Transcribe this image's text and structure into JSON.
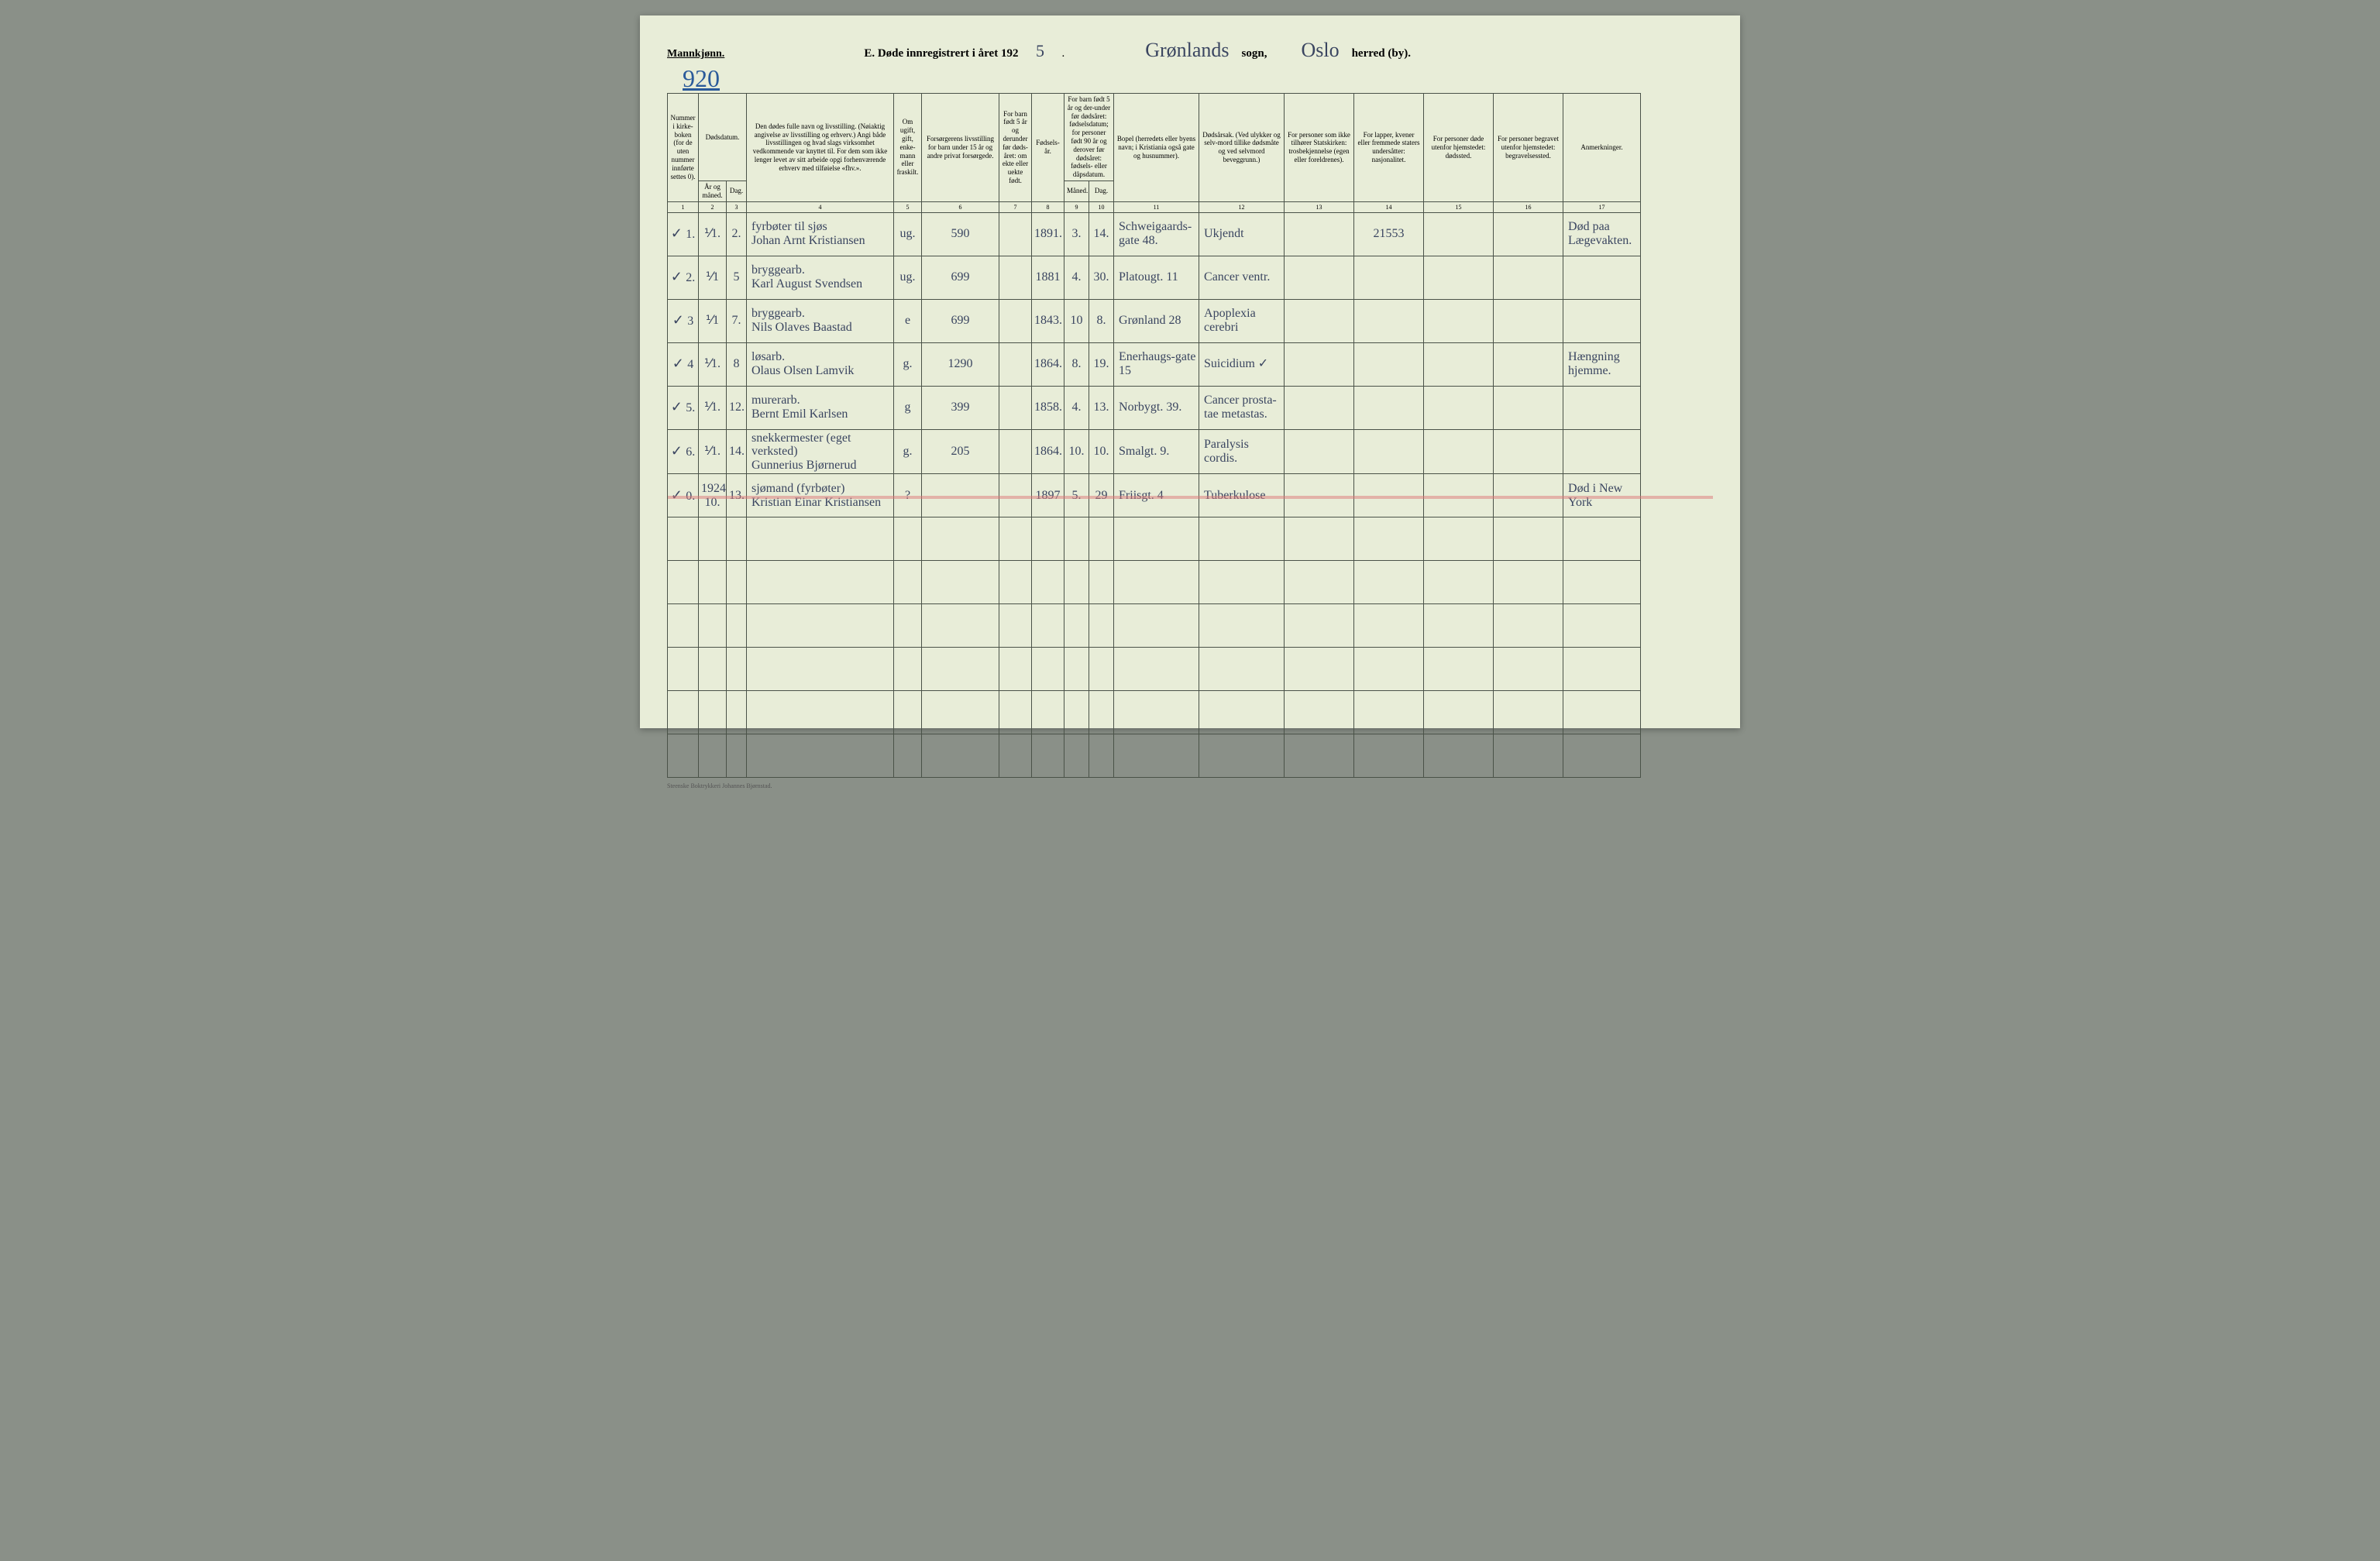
{
  "header": {
    "gender": "Mannkjønn.",
    "title_prefix": "E.  Døde innregistrert i året 192",
    "year_suffix": "5",
    "period": ".",
    "parish": "Grønlands",
    "parish_label": "sogn,",
    "district": "Oslo",
    "district_label": "herred (by).",
    "page_number": "920"
  },
  "columns": {
    "c1": "Nummer i kirke-boken (for de uten nummer innførte settes 0).",
    "c2_top": "Dødsdatum.",
    "c2a": "År og måned.",
    "c2b": "Dag.",
    "c3": "Den dødes fulle navn og livsstilling. (Nøiaktig angivelse av livsstilling og erhverv.) Angi både livsstillingen og hvad slags virksomhet vedkommende var knyttet til. For dem som ikke lenger levet av sitt arbeide opgi forhenværende erhverv med tilføielse «fhv.».",
    "c4": "Om ugift, gift, enke-mann eller fraskilt.",
    "c5": "Forsørgerens livsstilling for barn under 15 år og andre privat forsørgede.",
    "c6": "For barn født 5 år og derunder før døds-året: om ekte eller uekte født.",
    "c7": "Fødsels-år.",
    "c8_top": "For barn født 5 år og der-under før dødsåret: fødselsdatum; for personer født 90 år og derover før dødsåret: fødsels- eller dåpsdatum.",
    "c8a": "Måned.",
    "c8b": "Dag.",
    "c9": "Bopel (herredets eller byens navn; i Kristiania også gate og husnummer).",
    "c10": "Dødsårsak. (Ved ulykker og selv-mord tillike dødsmåte og ved selvmord beveggrunn.)",
    "c11": "For personer som ikke tilhører Statskirken: trosbekjennelse (egen eller foreldrenes).",
    "c12": "For lapper, kvener eller fremmede staters undersåtter: nasjonalitet.",
    "c13": "For personer døde utenfor hjemstedet: dødssted.",
    "c14": "For personer begravet utenfor hjemstedet: begravelsessted.",
    "c15": "Anmerkninger."
  },
  "colnums": [
    "1",
    "2",
    "3",
    "4",
    "5",
    "6",
    "7",
    "8",
    "9",
    "10",
    "11",
    "12",
    "13",
    "14",
    "15",
    "16",
    "17"
  ],
  "rows": [
    {
      "tick": "✓",
      "num": "1.",
      "month": "⅟1.",
      "day": "2.",
      "name": "fyrbøter til sjøs\nJohan Arnt Kristiansen",
      "status": "ug.",
      "provider": "590",
      "legit": "",
      "birth_year": "1891.",
      "b_month": "3.",
      "b_day": "14.",
      "residence": "Schweigaards-gate 48.",
      "cause": "Ukjendt",
      "faith": "",
      "nationality": "21553",
      "death_place": "",
      "burial_place": "",
      "remarks": "Død paa Lægevakten."
    },
    {
      "tick": "✓",
      "num": "2.",
      "month": "⅟1",
      "day": "5",
      "name": "bryggearb.\nKarl August Svendsen",
      "status": "ug.",
      "provider": "699",
      "legit": "",
      "birth_year": "1881",
      "b_month": "4.",
      "b_day": "30.",
      "residence": "Platougt. 11",
      "cause": "Cancer ventr.",
      "faith": "",
      "nationality": "",
      "death_place": "",
      "burial_place": "",
      "remarks": ""
    },
    {
      "tick": "✓",
      "num": "3",
      "month": "⅟1",
      "day": "7.",
      "name": "bryggearb.\nNils Olaves Baastad",
      "status": "e",
      "provider": "699",
      "legit": "",
      "birth_year": "1843.",
      "b_month": "10",
      "b_day": "8.",
      "residence": "Grønland 28",
      "cause": "Apoplexia cerebri",
      "faith": "",
      "nationality": "",
      "death_place": "",
      "burial_place": "",
      "remarks": ""
    },
    {
      "tick": "✓",
      "num": "4",
      "month": "⅟1.",
      "day": "8",
      "name": "løsarb.\nOlaus Olsen Lamvik",
      "status": "g.",
      "provider": "1290",
      "legit": "",
      "birth_year": "1864.",
      "b_month": "8.",
      "b_day": "19.",
      "residence": "Enerhaugs-gate 15",
      "cause": "Suicidium ✓",
      "faith": "",
      "nationality": "",
      "death_place": "",
      "burial_place": "",
      "remarks": "Hængning hjemme."
    },
    {
      "tick": "✓",
      "num": "5.",
      "month": "⅟1.",
      "day": "12.",
      "name": "murerarb.\nBernt Emil Karlsen",
      "status": "g",
      "provider": "399",
      "legit": "",
      "birth_year": "1858.",
      "b_month": "4.",
      "b_day": "13.",
      "residence": "Norbygt. 39.",
      "cause": "Cancer prosta-tae metastas.",
      "faith": "",
      "nationality": "",
      "death_place": "",
      "burial_place": "",
      "remarks": ""
    },
    {
      "tick": "✓",
      "num": "6.",
      "month": "⅟1.",
      "day": "14.",
      "name": "snekkermester (eget verksted)\nGunnerius Bjørnerud",
      "status": "g.",
      "provider": "205",
      "legit": "",
      "birth_year": "1864.",
      "b_month": "10.",
      "b_day": "10.",
      "residence": "Smalgt. 9.",
      "cause": "Paralysis cordis.",
      "faith": "",
      "nationality": "",
      "death_place": "",
      "burial_place": "",
      "remarks": ""
    },
    {
      "tick": "✓",
      "num": "0.",
      "month": "1924\n10.",
      "day": "13.",
      "name": "sjømand (fyrbøter)\nKristian Einar Kristiansen",
      "status": "?",
      "provider": "",
      "legit": "",
      "birth_year": "1897",
      "b_month": "5.",
      "b_day": "29",
      "residence": "Friisgt. 4",
      "cause": "Tuberkulose",
      "faith": "",
      "nationality": "",
      "death_place": "",
      "burial_place": "",
      "remarks": "Død i New York",
      "struck": true
    }
  ],
  "empty_rows": 6,
  "footer": "Steenske Boktrykkeri Johannes Bjørnstad.",
  "col_widths": [
    "40",
    "36",
    "26",
    "190",
    "36",
    "100",
    "42",
    "42",
    "32",
    "32",
    "110",
    "110",
    "90",
    "90",
    "90",
    "90",
    "100"
  ],
  "styling": {
    "page_bg": "#e8edd8",
    "border_color": "#4a5248",
    "ink_color": "#3a4560",
    "struck_color": "rgba(220,120,120,0.5)",
    "header_font_size": 9,
    "body_font_size": 16
  }
}
